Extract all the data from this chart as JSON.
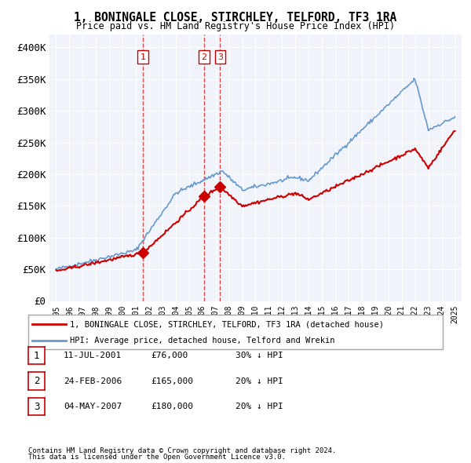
{
  "title": "1, BONINGALE CLOSE, STIRCHLEY, TELFORD, TF3 1RA",
  "subtitle": "Price paid vs. HM Land Registry's House Price Index (HPI)",
  "ylabel": "",
  "ylim": [
    0,
    420000
  ],
  "yticks": [
    0,
    50000,
    100000,
    150000,
    200000,
    250000,
    300000,
    350000,
    400000
  ],
  "ytick_labels": [
    "£0",
    "£50K",
    "£100K",
    "£150K",
    "£200K",
    "£250K",
    "£300K",
    "£350K",
    "£400K"
  ],
  "sale_dates": [
    "2001-07-11",
    "2006-02-24",
    "2007-05-04"
  ],
  "sale_prices": [
    76000,
    165000,
    180000
  ],
  "sale_labels": [
    "1",
    "2",
    "3"
  ],
  "legend_house": "1, BONINGALE CLOSE, STIRCHLEY, TELFORD, TF3 1RA (detached house)",
  "legend_hpi": "HPI: Average price, detached house, Telford and Wrekin",
  "table_rows": [
    {
      "num": "1",
      "date": "11-JUL-2001",
      "price": "£76,000",
      "hpi": "30% ↓ HPI"
    },
    {
      "num": "2",
      "date": "24-FEB-2006",
      "price": "£165,000",
      "hpi": "20% ↓ HPI"
    },
    {
      "num": "3",
      "date": "04-MAY-2007",
      "price": "£180,000",
      "hpi": "20% ↓ HPI"
    }
  ],
  "footnote1": "Contains HM Land Registry data © Crown copyright and database right 2024.",
  "footnote2": "This data is licensed under the Open Government Licence v3.0.",
  "hpi_color": "#6699cc",
  "price_color": "#cc0000",
  "vline_color": "#cc0000",
  "background_color": "#f0f4fa"
}
